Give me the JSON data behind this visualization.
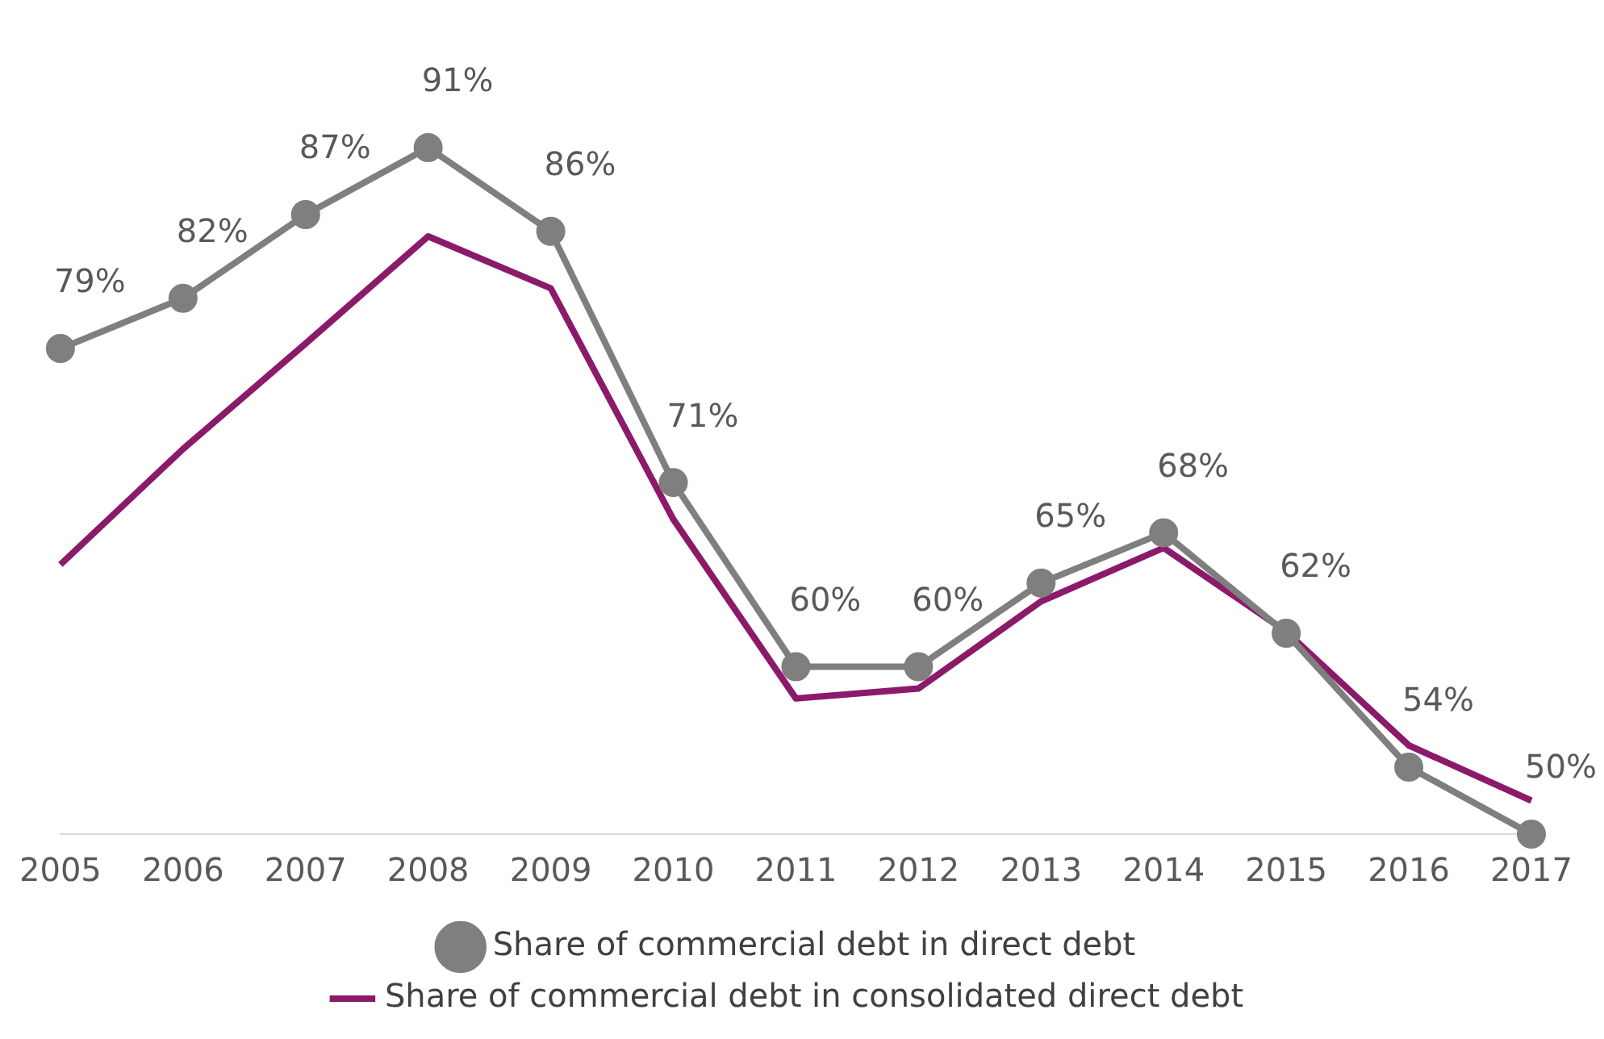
{
  "chart_data": {
    "type": "line",
    "categories": [
      "2005",
      "2006",
      "2007",
      "2008",
      "2009",
      "2010",
      "2011",
      "2012",
      "2013",
      "2014",
      "2015",
      "2016",
      "2017"
    ],
    "tick_labels": "x",
    "grid": false,
    "legend": "bottom",
    "series": [
      {
        "name": "Share of commercial debt in direct debt",
        "color": "#7f7f7f",
        "marker": "circle",
        "values": [
          79,
          82,
          87,
          91,
          86,
          71,
          60,
          60,
          65,
          68,
          62,
          54,
          50
        ],
        "value_labels": [
          "79%",
          "82%",
          "87%",
          "91%",
          "86%",
          "71%",
          "60%",
          "60%",
          "65%",
          "68%",
          "62%",
          "54%",
          "50%"
        ]
      },
      {
        "name": "Share of commercial debt in consolidated direct debt",
        "color": "#8b1a6b",
        "marker": "none",
        "values": [
          66.1,
          73,
          79.3,
          85.7,
          82.6,
          68.8,
          58.1,
          58.7,
          63.9,
          67.1,
          62.1,
          55.3,
          52
        ]
      }
    ]
  }
}
